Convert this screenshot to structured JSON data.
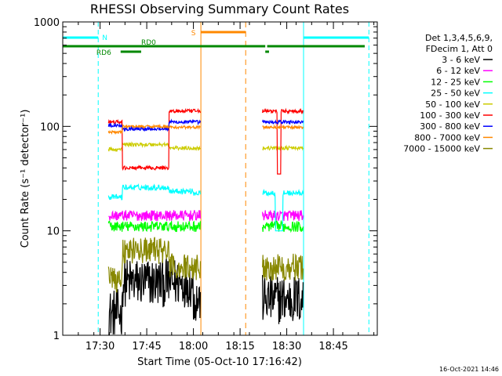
{
  "chart_data": {
    "type": "line",
    "title": "RHESSI Observing Summary Count Rates",
    "xlabel": "Start Time (05-Oct-10 17:16:42)",
    "ylabel": "Count Rate (s⁻¹ detector⁻¹)",
    "yscale": "log",
    "ylim": [
      1,
      1000
    ],
    "xlim_minutes": [
      17.3,
      18.985
    ],
    "x_ticks": [
      {
        "label": "17:30",
        "value": 17.5
      },
      {
        "label": "17:45",
        "value": 17.75
      },
      {
        "label": "18:00",
        "value": 18.0
      },
      {
        "label": "18:15",
        "value": 18.25
      },
      {
        "label": "18:30",
        "value": 18.5
      },
      {
        "label": "18:45",
        "value": 18.75
      }
    ],
    "y_ticks": [
      {
        "label": "1",
        "value": 1
      },
      {
        "label": "10",
        "value": 10
      },
      {
        "label": "100",
        "value": 100
      },
      {
        "label": "1000",
        "value": 1000
      }
    ],
    "legend_header": [
      "Det 1,3,4,5,6,9,",
      "FDecim 1, Att 0"
    ],
    "series": [
      {
        "name": "3 - 6 keV",
        "color": "#000000"
      },
      {
        "name": "6 - 12 keV",
        "color": "#ff00ff"
      },
      {
        "name": "12 - 25 keV",
        "color": "#00ff00"
      },
      {
        "name": "25 - 50 keV",
        "color": "#00ffff"
      },
      {
        "name": "50 - 100 keV",
        "color": "#cccc00"
      },
      {
        "name": "100 - 300 keV",
        "color": "#ff0000"
      },
      {
        "name": "300 - 800 keV",
        "color": "#0000ff"
      },
      {
        "name": "800 - 7000 keV",
        "color": "#ff8800"
      },
      {
        "name": "7000 - 15000 keV",
        "color": "#888800"
      }
    ],
    "annotations": [
      {
        "label": "N",
        "color": "#00ffff"
      },
      {
        "label": "RD0",
        "color": "#008800"
      },
      {
        "label": "RD6",
        "color": "#008800"
      },
      {
        "label": "S",
        "color": "#ff8800"
      }
    ],
    "timestamp": "16-Oct-2021 14:46",
    "grid": false,
    "legend_position": "top-right"
  }
}
